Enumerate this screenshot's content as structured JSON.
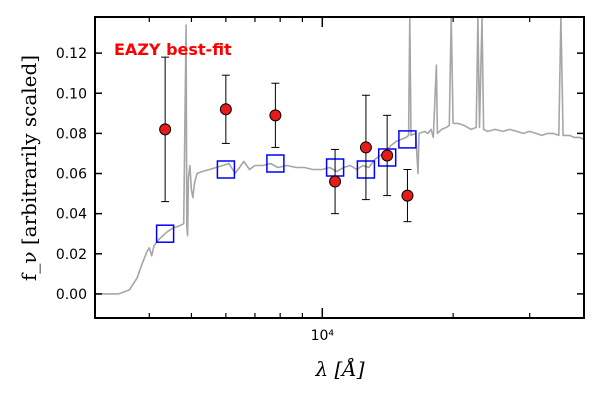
{
  "chart_data": {
    "type": "scatter",
    "xlabel": "λ [Å]",
    "ylabel": "f_ν [arbitrarily scaled]",
    "x_scale": "log",
    "xlim": [
      3000,
      40000
    ],
    "ylim": [
      -0.012,
      0.138
    ],
    "x_ticks": [
      {
        "value": 10000,
        "label": "10⁴"
      }
    ],
    "y_ticks": [
      0.0,
      0.02,
      0.04,
      0.06,
      0.08,
      0.1,
      0.12
    ],
    "y_tick_labels": [
      "0.00",
      "0.02",
      "0.04",
      "0.06",
      "0.08",
      "0.10",
      "0.12"
    ],
    "grid": false,
    "annotation": {
      "text": "EAZY best-fit",
      "color": "#ff0000"
    },
    "colors": {
      "observed": "#e81b1b",
      "model_photometry": "#0000ff",
      "template": "#a6a6a6"
    },
    "series": [
      {
        "marker": "circle-with-errorbars",
        "points": [
          {
            "x": 4350,
            "y": 0.082,
            "yerr": 0.036
          },
          {
            "x": 6000,
            "y": 0.092,
            "yerr": 0.017
          },
          {
            "x": 7800,
            "y": 0.089,
            "yerr": 0.016
          },
          {
            "x": 10700,
            "y": 0.056,
            "yerr": 0.016
          },
          {
            "x": 12600,
            "y": 0.073,
            "yerr": 0.026
          },
          {
            "x": 14100,
            "y": 0.069,
            "yerr": 0.02
          },
          {
            "x": 15700,
            "y": 0.049,
            "yerr": 0.013
          }
        ]
      },
      {
        "marker": "open-square",
        "points": [
          {
            "x": 4350,
            "y": 0.03
          },
          {
            "x": 6000,
            "y": 0.062
          },
          {
            "x": 7800,
            "y": 0.065
          },
          {
            "x": 10700,
            "y": 0.063
          },
          {
            "x": 12600,
            "y": 0.062
          },
          {
            "x": 14100,
            "y": 0.068
          },
          {
            "x": 15700,
            "y": 0.077
          }
        ]
      },
      {
        "marker": "line",
        "points": [
          [
            3000,
            0.0
          ],
          [
            3400,
            0.0
          ],
          [
            3600,
            0.002
          ],
          [
            3750,
            0.008
          ],
          [
            3850,
            0.015
          ],
          [
            3950,
            0.021
          ],
          [
            4000,
            0.023
          ],
          [
            4050,
            0.019
          ],
          [
            4100,
            0.024
          ],
          [
            4200,
            0.027
          ],
          [
            4300,
            0.029
          ],
          [
            4400,
            0.031
          ],
          [
            4550,
            0.033
          ],
          [
            4700,
            0.034
          ],
          [
            4800,
            0.035
          ],
          [
            4860,
            0.134
          ],
          [
            4880,
            0.034
          ],
          [
            4900,
            0.029
          ],
          [
            4920,
            0.058
          ],
          [
            4960,
            0.064
          ],
          [
            5000,
            0.052
          ],
          [
            5040,
            0.048
          ],
          [
            5080,
            0.055
          ],
          [
            5150,
            0.06
          ],
          [
            5300,
            0.061
          ],
          [
            5500,
            0.062
          ],
          [
            5700,
            0.063
          ],
          [
            5900,
            0.064
          ],
          [
            6100,
            0.065
          ],
          [
            6300,
            0.06
          ],
          [
            6450,
            0.063
          ],
          [
            6600,
            0.066
          ],
          [
            6800,
            0.062
          ],
          [
            7000,
            0.064
          ],
          [
            7300,
            0.064
          ],
          [
            7600,
            0.065
          ],
          [
            7900,
            0.063
          ],
          [
            8300,
            0.064
          ],
          [
            8700,
            0.063
          ],
          [
            9100,
            0.063
          ],
          [
            9500,
            0.062
          ],
          [
            10000,
            0.062
          ],
          [
            10400,
            0.063
          ],
          [
            10800,
            0.061
          ],
          [
            11200,
            0.063
          ],
          [
            11600,
            0.064
          ],
          [
            12000,
            0.062
          ],
          [
            12400,
            0.064
          ],
          [
            12800,
            0.063
          ],
          [
            13200,
            0.067
          ],
          [
            13600,
            0.069
          ],
          [
            14000,
            0.071
          ],
          [
            14400,
            0.074
          ],
          [
            14800,
            0.076
          ],
          [
            15200,
            0.077
          ],
          [
            15600,
            0.078
          ],
          [
            15800,
            0.079
          ],
          [
            15900,
            0.138
          ],
          [
            16000,
            0.079
          ],
          [
            16400,
            0.08
          ],
          [
            16600,
            0.06
          ],
          [
            16700,
            0.08
          ],
          [
            17200,
            0.081
          ],
          [
            17500,
            0.08
          ],
          [
            17800,
            0.082
          ],
          [
            18000,
            0.078
          ],
          [
            18300,
            0.114
          ],
          [
            18400,
            0.08
          ],
          [
            18800,
            0.082
          ],
          [
            19300,
            0.083
          ],
          [
            19600,
            0.084
          ],
          [
            19800,
            0.138
          ],
          [
            20000,
            0.085
          ],
          [
            20500,
            0.085
          ],
          [
            21200,
            0.084
          ],
          [
            22000,
            0.082
          ],
          [
            22600,
            0.083
          ],
          [
            22800,
            0.138
          ],
          [
            23000,
            0.083
          ],
          [
            23300,
            0.138
          ],
          [
            23500,
            0.082
          ],
          [
            24000,
            0.081
          ],
          [
            25000,
            0.082
          ],
          [
            26000,
            0.081
          ],
          [
            27000,
            0.082
          ],
          [
            28000,
            0.081
          ],
          [
            29000,
            0.08
          ],
          [
            30000,
            0.081
          ],
          [
            31000,
            0.08
          ],
          [
            32000,
            0.079
          ],
          [
            33000,
            0.08
          ],
          [
            34000,
            0.08
          ],
          [
            35000,
            0.079
          ],
          [
            35400,
            0.138
          ],
          [
            35800,
            0.079
          ],
          [
            37000,
            0.079
          ],
          [
            38000,
            0.078
          ],
          [
            39000,
            0.078
          ],
          [
            40000,
            0.077
          ]
        ]
      }
    ]
  }
}
